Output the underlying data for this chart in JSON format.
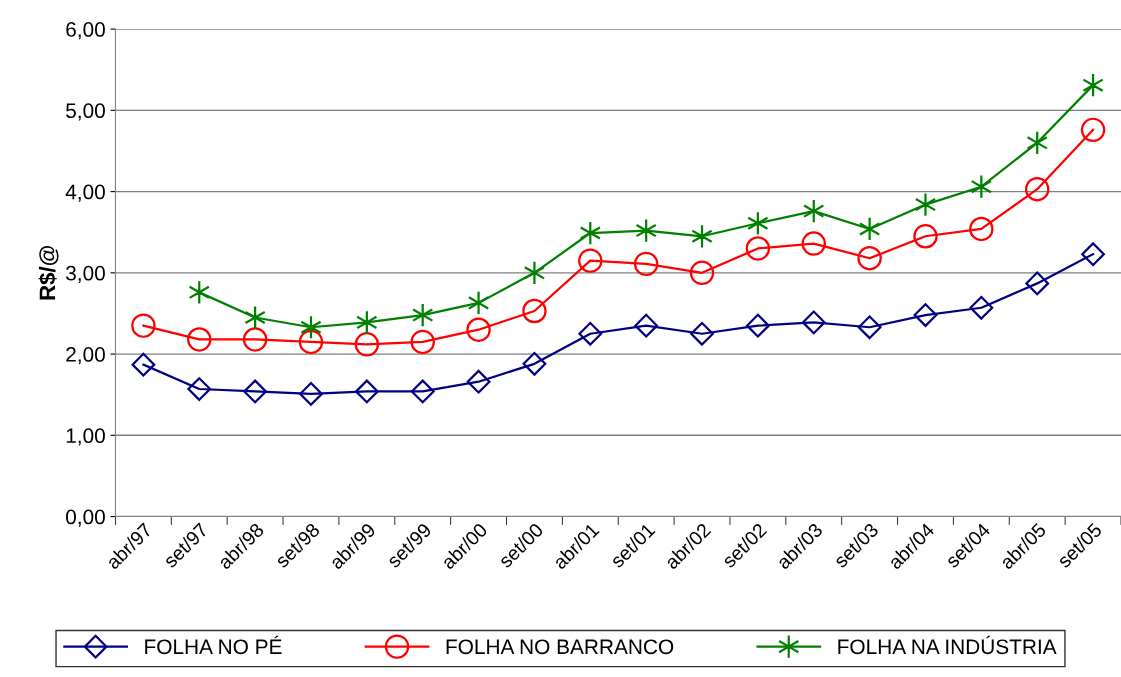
{
  "chart_data": {
    "type": "line",
    "ylabel": "R$/@",
    "categories": [
      "abr/97",
      "set/97",
      "abr/98",
      "set/98",
      "abr/99",
      "set/99",
      "abr/00",
      "set/00",
      "abr/01",
      "set/01",
      "abr/02",
      "set/02",
      "abr/03",
      "set/03",
      "abr/04",
      "set/04",
      "abr/05",
      "set/05"
    ],
    "series": [
      {
        "name": "FOLHA NO PÉ",
        "color": "#000080",
        "marker": "diamond",
        "values": [
          1.87,
          1.57,
          1.54,
          1.51,
          1.54,
          1.54,
          1.66,
          1.88,
          2.25,
          2.35,
          2.25,
          2.35,
          2.39,
          2.33,
          2.48,
          2.57,
          2.87,
          3.23
        ]
      },
      {
        "name": "FOLHA NO BARRANCO",
        "color": "#ff0000",
        "marker": "circle",
        "values": [
          2.35,
          2.18,
          2.18,
          2.15,
          2.12,
          2.15,
          2.3,
          2.53,
          3.15,
          3.11,
          3.0,
          3.3,
          3.36,
          3.18,
          3.45,
          3.54,
          4.03,
          4.76
        ]
      },
      {
        "name": "FOLHA NA INDÚSTRIA",
        "color": "#008000",
        "marker": "cross",
        "values": [
          null,
          2.76,
          2.45,
          2.33,
          2.39,
          2.48,
          2.63,
          3.0,
          3.49,
          3.52,
          3.45,
          3.61,
          3.76,
          3.54,
          3.84,
          4.06,
          4.6,
          5.31
        ]
      }
    ],
    "ylim": [
      0,
      6
    ],
    "yticks": [
      {
        "value": 0,
        "label": "0,00"
      },
      {
        "value": 1,
        "label": "1,00"
      },
      {
        "value": 2,
        "label": "2,00"
      },
      {
        "value": 3,
        "label": "3,00"
      },
      {
        "value": 4,
        "label": "4,00"
      },
      {
        "value": 5,
        "label": "5,00"
      },
      {
        "value": 6,
        "label": "6,00"
      }
    ],
    "grid": "y",
    "legend": "bottom",
    "line_style": "solid"
  }
}
